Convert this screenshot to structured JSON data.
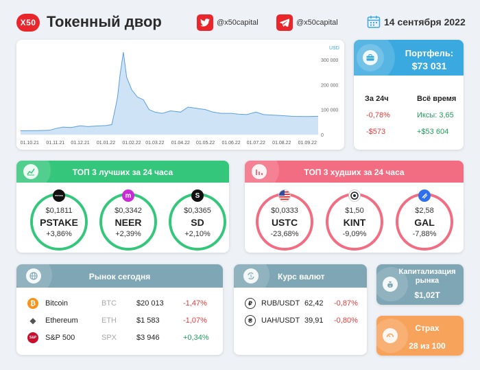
{
  "header": {
    "logo": "X50",
    "title": "Токенный двор",
    "twitter": "@x50capital",
    "telegram": "@x50capital",
    "date": "14 сентября 2022"
  },
  "chart": {
    "unit": "USD",
    "yticks": [
      "300 000",
      "200 000",
      "100 000",
      "0"
    ],
    "xticks": [
      "01.10.21",
      "01.11.21",
      "01.12.21",
      "01.01.22",
      "01.02.22",
      "01.03.22",
      "01.04.22",
      "01.05.22",
      "01.06.22",
      "01.07.22",
      "01.08.22",
      "01.09.22"
    ]
  },
  "chart_data": {
    "type": "area",
    "y_unit": "USD",
    "ylim": [
      0,
      330000
    ],
    "x": [
      "2021-09-20",
      "2021-10-10",
      "2021-10-25",
      "2021-11-01",
      "2021-11-10",
      "2021-11-20",
      "2021-12-01",
      "2021-12-10",
      "2021-12-20",
      "2022-01-01",
      "2022-01-08",
      "2022-01-12",
      "2022-01-15",
      "2022-01-18",
      "2022-01-22",
      "2022-01-26",
      "2022-02-01",
      "2022-02-08",
      "2022-02-15",
      "2022-02-22",
      "2022-03-01",
      "2022-03-10",
      "2022-03-20",
      "2022-04-01",
      "2022-04-10",
      "2022-04-20",
      "2022-05-01",
      "2022-05-10",
      "2022-05-20",
      "2022-06-01",
      "2022-06-10",
      "2022-06-20",
      "2022-07-01",
      "2022-07-10",
      "2022-07-20",
      "2022-08-01",
      "2022-08-15",
      "2022-09-01",
      "2022-09-14"
    ],
    "values": [
      15000,
      16000,
      17000,
      24000,
      30000,
      28000,
      35000,
      32000,
      34000,
      36000,
      40000,
      100000,
      150000,
      240000,
      330000,
      230000,
      180000,
      150000,
      140000,
      100000,
      90000,
      85000,
      95000,
      90000,
      110000,
      105000,
      100000,
      90000,
      85000,
      85000,
      82000,
      80000,
      90000,
      80000,
      78000,
      76000,
      73000,
      72000,
      73031
    ]
  },
  "portfolio": {
    "title": "Портфель:",
    "value": "$73 031",
    "col1_label": "За 24ч",
    "col2_label": "Всё время",
    "pct_24h": "-0,78%",
    "usd_24h": "-$573",
    "x_all": "Иксы: 3,65",
    "usd_all": "+$53 604"
  },
  "best": {
    "title": "ТОП 3 лучших за 24 часа",
    "items": [
      {
        "price": "$0,1811",
        "sym": "PSTAKE",
        "chg": "+3,86%",
        "icon_text": "PSTAKE"
      },
      {
        "price": "$0,3342",
        "sym": "NEER",
        "chg": "+2,39%",
        "icon_text": "m"
      },
      {
        "price": "$0,3365",
        "sym": "SD",
        "chg": "+2,10%",
        "icon_text": "S"
      }
    ]
  },
  "worst": {
    "title": "ТОП 3 худших за 24 часа",
    "items": [
      {
        "price": "$0,0333",
        "sym": "USTC",
        "chg": "-23,68%"
      },
      {
        "price": "$1,50",
        "sym": "KINT",
        "chg": "-9,09%"
      },
      {
        "price": "$2,58",
        "sym": "GAL",
        "chg": "-7,88%"
      }
    ]
  },
  "market": {
    "title": "Рынок сегодня",
    "rows": [
      {
        "name": "Bitcoin",
        "ticker": "BTC",
        "price": "$20 013",
        "chg": "-1,47%",
        "icon": "₿",
        "icon_text": ""
      },
      {
        "name": "Ethereum",
        "ticker": "ETH",
        "price": "$1 583",
        "chg": "-1,07%",
        "icon": "◆",
        "icon_text": ""
      },
      {
        "name": "S&P 500",
        "ticker": "SPX",
        "price": "$3 946",
        "chg": "+0,34%",
        "icon": "",
        "icon_text": "S&P"
      }
    ]
  },
  "fx": {
    "title": "Курс валют",
    "rows": [
      {
        "pair": "RUB/USDT",
        "rate": "62,42",
        "chg": "-0,87%",
        "icon": "₽"
      },
      {
        "pair": "UAH/USDT",
        "rate": "39,91",
        "chg": "-0,80%",
        "icon": "₴"
      }
    ]
  },
  "cap": {
    "title": "Капитализация рынка",
    "value": "$1,02T"
  },
  "fear": {
    "title": "Страх",
    "value": "28 из 100"
  },
  "colors": {
    "brand_red": "#e8262c",
    "blue": "#3aa9e0",
    "green": "#34c77b",
    "pink": "#f26d82",
    "steel": "#7ea6b4",
    "orange": "#f7a35c"
  }
}
